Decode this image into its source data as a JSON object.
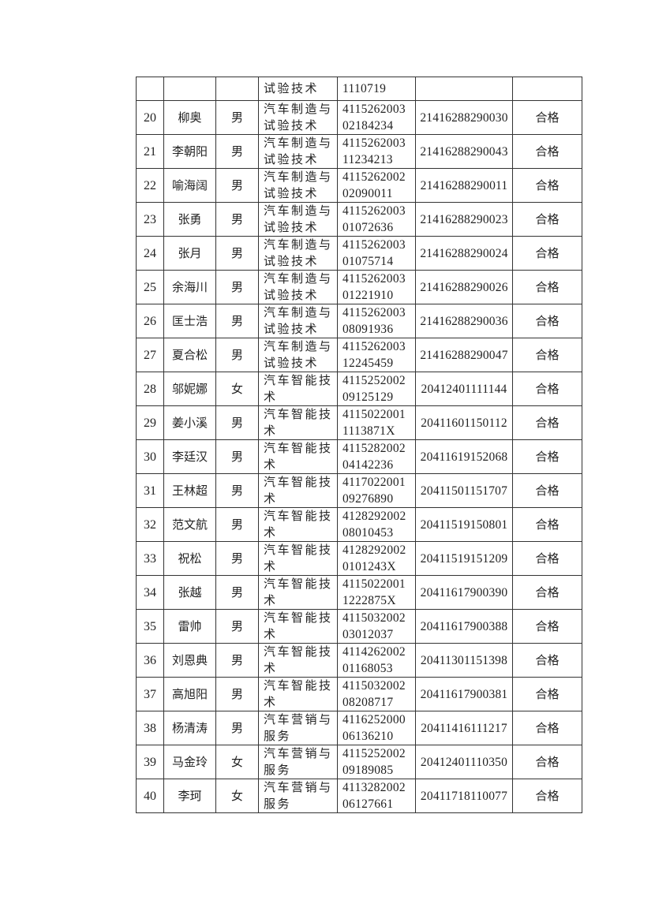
{
  "table": {
    "partial_row": {
      "major": "试验技术",
      "id_number": "1110719"
    },
    "rows": [
      {
        "no": "20",
        "name": "柳奥",
        "gender": "男",
        "major": "汽车制造与试验技术",
        "id_number": "411526200302184234",
        "cert": "21416288290030",
        "result": "合格"
      },
      {
        "no": "21",
        "name": "李朝阳",
        "gender": "男",
        "major": "汽车制造与试验技术",
        "id_number": "411526200311234213",
        "cert": "21416288290043",
        "result": "合格"
      },
      {
        "no": "22",
        "name": "喻海阔",
        "gender": "男",
        "major": "汽车制造与试验技术",
        "id_number": "411526200202090011",
        "cert": "21416288290011",
        "result": "合格"
      },
      {
        "no": "23",
        "name": "张勇",
        "gender": "男",
        "major": "汽车制造与试验技术",
        "id_number": "411526200301072636",
        "cert": "21416288290023",
        "result": "合格"
      },
      {
        "no": "24",
        "name": "张月",
        "gender": "男",
        "major": "汽车制造与试验技术",
        "id_number": "411526200301075714",
        "cert": "21416288290024",
        "result": "合格"
      },
      {
        "no": "25",
        "name": "余海川",
        "gender": "男",
        "major": "汽车制造与试验技术",
        "id_number": "411526200301221910",
        "cert": "21416288290026",
        "result": "合格"
      },
      {
        "no": "26",
        "name": "匡士浩",
        "gender": "男",
        "major": "汽车制造与试验技术",
        "id_number": "411526200308091936",
        "cert": "21416288290036",
        "result": "合格"
      },
      {
        "no": "27",
        "name": "夏合松",
        "gender": "男",
        "major": "汽车制造与试验技术",
        "id_number": "411526200312245459",
        "cert": "21416288290047",
        "result": "合格"
      },
      {
        "no": "28",
        "name": "邬妮娜",
        "gender": "女",
        "major": "汽车智能技术",
        "id_number": "411525200209125129",
        "cert": "20412401111144",
        "result": "合格"
      },
      {
        "no": "29",
        "name": "姜小溪",
        "gender": "男",
        "major": "汽车智能技术",
        "id_number": "41150220011113871X",
        "cert": "20411601150112",
        "result": "合格"
      },
      {
        "no": "30",
        "name": "李廷汉",
        "gender": "男",
        "major": "汽车智能技术",
        "id_number": "411528200204142236",
        "cert": "20411619152068",
        "result": "合格"
      },
      {
        "no": "31",
        "name": "王林超",
        "gender": "男",
        "major": "汽车智能技术",
        "id_number": "411702200109276890",
        "cert": "20411501151707",
        "result": "合格"
      },
      {
        "no": "32",
        "name": "范文航",
        "gender": "男",
        "major": "汽车智能技术",
        "id_number": "412829200208010453",
        "cert": "20411519150801",
        "result": "合格"
      },
      {
        "no": "33",
        "name": "祝松",
        "gender": "男",
        "major": "汽车智能技术",
        "id_number": "41282920020101243X",
        "cert": "20411519151209",
        "result": "合格"
      },
      {
        "no": "34",
        "name": "张越",
        "gender": "男",
        "major": "汽车智能技术",
        "id_number": "41150220011222875X",
        "cert": "20411617900390",
        "result": "合格"
      },
      {
        "no": "35",
        "name": "雷帅",
        "gender": "男",
        "major": "汽车智能技术",
        "id_number": "411503200203012037",
        "cert": "20411617900388",
        "result": "合格"
      },
      {
        "no": "36",
        "name": "刘恩典",
        "gender": "男",
        "major": "汽车智能技术",
        "id_number": "411426200201168053",
        "cert": "20411301151398",
        "result": "合格"
      },
      {
        "no": "37",
        "name": "高旭阳",
        "gender": "男",
        "major": "汽车智能技术",
        "id_number": "411503200208208717",
        "cert": "20411617900381",
        "result": "合格"
      },
      {
        "no": "38",
        "name": "杨清涛",
        "gender": "男",
        "major": "汽车营销与服务",
        "id_number": "411625200006136210",
        "cert": "20411416111217",
        "result": "合格"
      },
      {
        "no": "39",
        "name": "马金玲",
        "gender": "女",
        "major": "汽车营销与服务",
        "id_number": "411525200209189085",
        "cert": "20412401110350",
        "result": "合格"
      },
      {
        "no": "40",
        "name": "李珂",
        "gender": "女",
        "major": "汽车营销与服务",
        "id_number": "411328200206127661",
        "cert": "20411718110077",
        "result": "合格"
      }
    ]
  }
}
